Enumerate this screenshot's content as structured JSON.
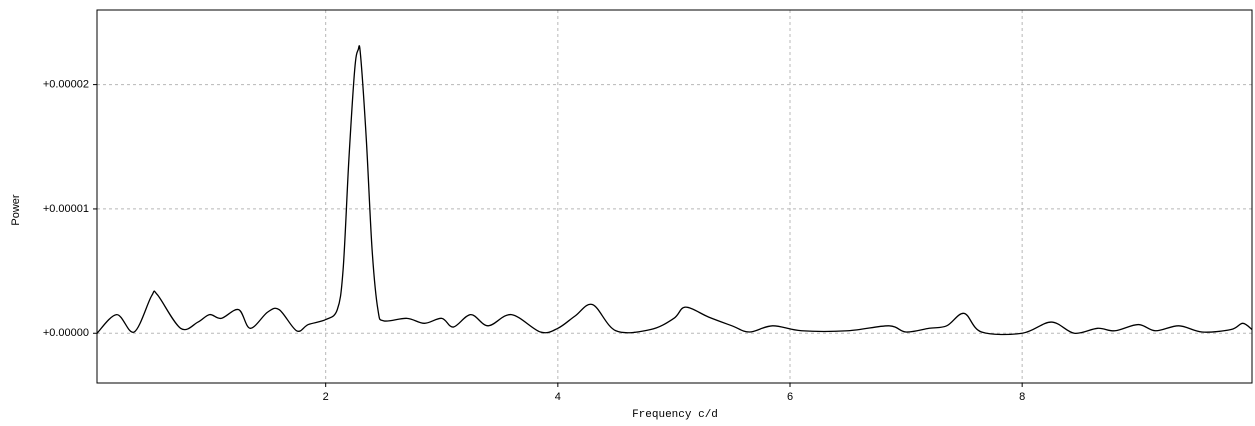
{
  "chart_data": {
    "type": "line",
    "x_label": "Frequency c/d",
    "y_label": "Power",
    "xlim": [
      0.03,
      9.98
    ],
    "xticks": [
      2,
      4,
      6,
      8
    ],
    "ylim": [
      -4e-06,
      2.6e-05
    ],
    "yticks": [
      {
        "value": 0,
        "label": "+0.00000"
      },
      {
        "value": 1e-05,
        "label": "+0.00001"
      },
      {
        "value": 2e-05,
        "label": "+0.00002"
      }
    ],
    "grid": true,
    "series": [
      {
        "color": "#000000",
        "x": [
          0.03,
          0.2,
          0.35,
          0.5,
          0.55,
          0.75,
          0.9,
          1.0,
          1.1,
          1.25,
          1.35,
          1.5,
          1.6,
          1.75,
          1.85,
          2.0,
          2.1,
          2.15,
          2.2,
          2.25,
          2.28,
          2.3,
          2.35,
          2.4,
          2.45,
          2.5,
          2.7,
          2.85,
          3.0,
          3.1,
          3.25,
          3.4,
          3.6,
          3.85,
          4.0,
          4.15,
          4.3,
          4.5,
          4.8,
          5.0,
          5.1,
          5.3,
          5.5,
          5.65,
          5.85,
          6.1,
          6.5,
          6.85,
          7.0,
          7.2,
          7.35,
          7.5,
          7.65,
          8.0,
          8.25,
          8.45,
          8.65,
          8.8,
          9.0,
          9.15,
          9.35,
          9.55,
          9.8,
          9.9,
          9.98
        ],
        "values": [
          0,
          1.5e-06,
          1e-07,
          3e-06,
          3.1e-06,
          4e-07,
          9e-07,
          1.5e-06,
          1.2e-06,
          1.9e-06,
          4e-07,
          1.7e-06,
          1.9e-06,
          2e-07,
          7e-07,
          1.1e-06,
          1.9e-06,
          5.1e-06,
          1.4e-05,
          2.12e-05,
          2.28e-05,
          2.24e-05,
          1.56e-05,
          6.7e-06,
          1.9e-06,
          1e-06,
          1.2e-06,
          8e-07,
          1.2e-06,
          5e-07,
          1.5e-06,
          6e-07,
          1.5e-06,
          1e-07,
          4e-07,
          1.4e-06,
          2.3e-06,
          2e-07,
          3e-07,
          1.2e-06,
          2.1e-06,
          1.3e-06,
          6e-07,
          1e-07,
          6e-07,
          2e-07,
          2e-07,
          6e-07,
          1e-07,
          4e-07,
          6e-07,
          1.6e-06,
          1e-07,
          0,
          9e-07,
          0,
          4e-07,
          2e-07,
          7e-07,
          2e-07,
          6e-07,
          1e-07,
          3e-07,
          8e-07,
          3e-07
        ]
      }
    ]
  }
}
